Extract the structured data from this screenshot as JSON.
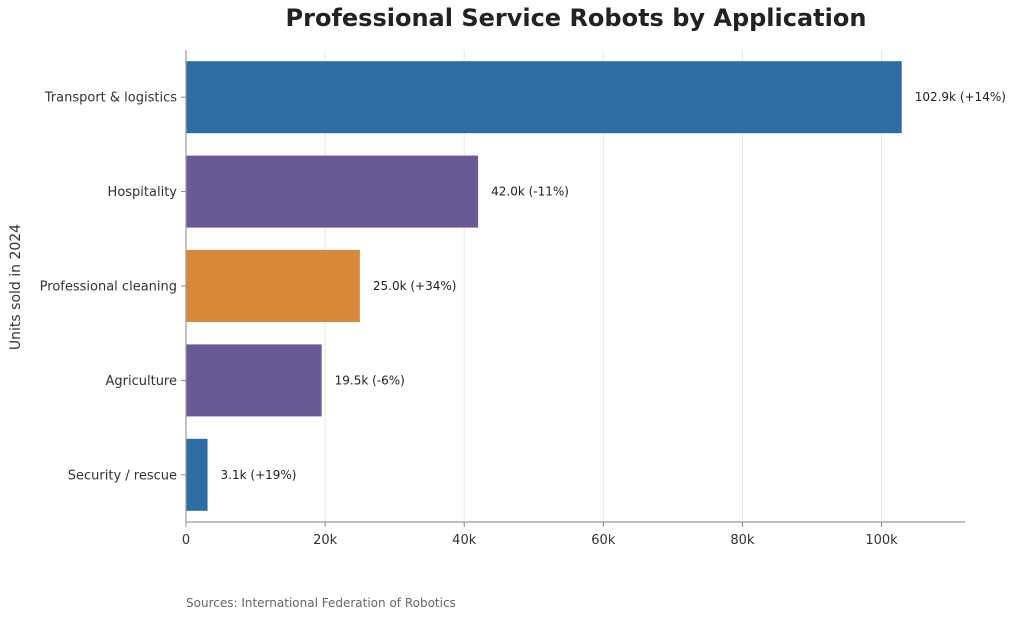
{
  "chart_data": {
    "type": "bar",
    "orientation": "horizontal",
    "title": "Professional Service Robots by Application",
    "ylabel": "Units sold in 2024",
    "xlabel": "",
    "categories": [
      "Transport & logistics",
      "Hospitality",
      "Professional cleaning",
      "Agriculture",
      "Security / rescue"
    ],
    "values": [
      102900,
      42000,
      25000,
      19500,
      3100
    ],
    "data_labels": [
      "102.9k  (+14%)",
      "42.0k  (-11%)",
      "25.0k  (+34%)",
      "19.5k  (-6%)",
      "3.1k  (+19%)"
    ],
    "colors": [
      "#2e6da4",
      "#6a5a94",
      "#d9883a",
      "#6a5a94",
      "#2e6da4"
    ],
    "xlim": [
      0,
      112000
    ],
    "x_ticks": [
      0,
      20000,
      40000,
      60000,
      80000,
      100000
    ],
    "x_tick_labels": [
      "0",
      "20k",
      "40k",
      "60k",
      "80k",
      "100k"
    ],
    "grid": "vertical",
    "legend": "none"
  },
  "source_note": "Sources: International Federation of Robotics"
}
